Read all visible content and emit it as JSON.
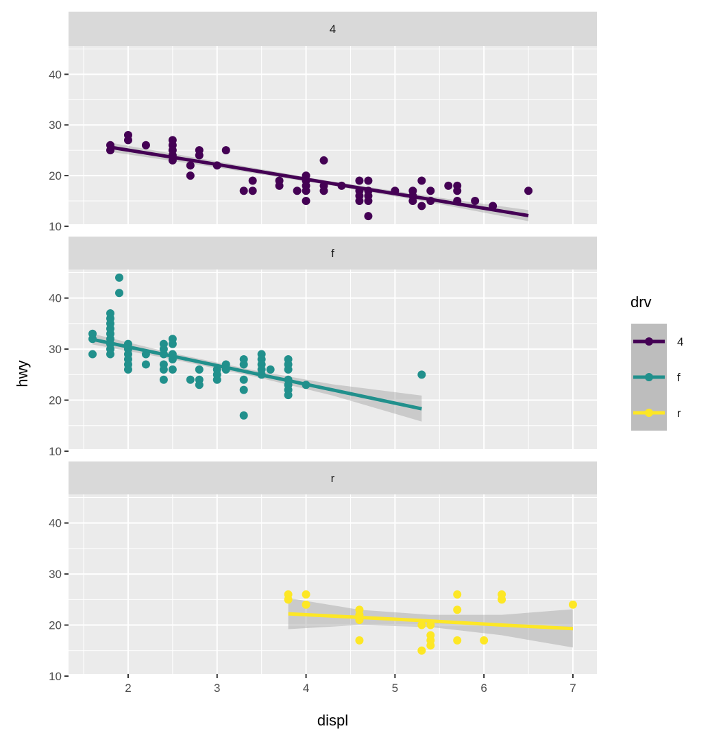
{
  "chart_data": {
    "type": "scatter",
    "xlabel": "displ",
    "ylabel": "hwy",
    "xlim": [
      1.33,
      7.27
    ],
    "ylim": [
      10.4,
      45.6
    ],
    "x_ticks": [
      2,
      3,
      4,
      5,
      6,
      7
    ],
    "y_ticks": [
      10,
      20,
      30,
      40
    ],
    "grid": true,
    "facet_by": "drv",
    "legend": {
      "title": "drv",
      "position": "right",
      "entries": [
        "4",
        "f",
        "r"
      ]
    },
    "facets": [
      {
        "label": "4",
        "color": "#440154",
        "points": [
          [
            1.8,
            26
          ],
          [
            1.8,
            25
          ],
          [
            2,
            28
          ],
          [
            2,
            27
          ],
          [
            2.2,
            26
          ],
          [
            2.5,
            27
          ],
          [
            2.5,
            26
          ],
          [
            2.5,
            25
          ],
          [
            2.5,
            24
          ],
          [
            2.5,
            23
          ],
          [
            2.7,
            22
          ],
          [
            2.7,
            20
          ],
          [
            2.8,
            25
          ],
          [
            2.8,
            24
          ],
          [
            3,
            22
          ],
          [
            3.1,
            25
          ],
          [
            3.3,
            17
          ],
          [
            3.4,
            19
          ],
          [
            3.4,
            17
          ],
          [
            3.7,
            19
          ],
          [
            3.7,
            18
          ],
          [
            3.9,
            17
          ],
          [
            4,
            20
          ],
          [
            4,
            19
          ],
          [
            4,
            18
          ],
          [
            4,
            17
          ],
          [
            4,
            15
          ],
          [
            4.2,
            23
          ],
          [
            4.2,
            18
          ],
          [
            4.2,
            17
          ],
          [
            4.4,
            18
          ],
          [
            4.6,
            19
          ],
          [
            4.6,
            17
          ],
          [
            4.6,
            16
          ],
          [
            4.6,
            15
          ],
          [
            4.7,
            19
          ],
          [
            4.7,
            17
          ],
          [
            4.7,
            16
          ],
          [
            4.7,
            15
          ],
          [
            4.7,
            12
          ],
          [
            5,
            17
          ],
          [
            5.2,
            17
          ],
          [
            5.2,
            16
          ],
          [
            5.2,
            15
          ],
          [
            5.3,
            19
          ],
          [
            5.3,
            14
          ],
          [
            5.4,
            17
          ],
          [
            5.4,
            15
          ],
          [
            5.6,
            18
          ],
          [
            5.7,
            18
          ],
          [
            5.7,
            17
          ],
          [
            5.7,
            15
          ],
          [
            5.9,
            15
          ],
          [
            6.1,
            14
          ],
          [
            6.5,
            17
          ]
        ],
        "fit": [
          [
            1.8,
            25.6,
            24.7,
            26.5
          ],
          [
            3,
            22.2,
            21.6,
            22.8
          ],
          [
            4.2,
            18.7,
            18.3,
            19.1
          ],
          [
            5.4,
            15.3,
            14.7,
            15.9
          ],
          [
            6.5,
            12.1,
            11.0,
            13.2
          ]
        ]
      },
      {
        "label": "f",
        "color": "#21908C",
        "points": [
          [
            1.6,
            33
          ],
          [
            1.6,
            32
          ],
          [
            1.6,
            29
          ],
          [
            1.8,
            29
          ],
          [
            1.8,
            30
          ],
          [
            1.8,
            31
          ],
          [
            1.8,
            32
          ],
          [
            1.8,
            33
          ],
          [
            1.8,
            34
          ],
          [
            1.8,
            35
          ],
          [
            1.8,
            36
          ],
          [
            1.8,
            37
          ],
          [
            1.9,
            44
          ],
          [
            1.9,
            41
          ],
          [
            2,
            31
          ],
          [
            2,
            30
          ],
          [
            2,
            29
          ],
          [
            2,
            28
          ],
          [
            2,
            27
          ],
          [
            2,
            26
          ],
          [
            2.2,
            29
          ],
          [
            2.2,
            27
          ],
          [
            2.4,
            31
          ],
          [
            2.4,
            30
          ],
          [
            2.4,
            29
          ],
          [
            2.4,
            27
          ],
          [
            2.4,
            26
          ],
          [
            2.4,
            24
          ],
          [
            2.5,
            32
          ],
          [
            2.5,
            31
          ],
          [
            2.5,
            29
          ],
          [
            2.5,
            28
          ],
          [
            2.5,
            26
          ],
          [
            2.7,
            24
          ],
          [
            2.8,
            26
          ],
          [
            2.8,
            24
          ],
          [
            2.8,
            23
          ],
          [
            3,
            26
          ],
          [
            3,
            25
          ],
          [
            3,
            24
          ],
          [
            3.1,
            27
          ],
          [
            3.1,
            26
          ],
          [
            3.3,
            28
          ],
          [
            3.3,
            27
          ],
          [
            3.3,
            24
          ],
          [
            3.3,
            22
          ],
          [
            3.3,
            17
          ],
          [
            3.5,
            29
          ],
          [
            3.5,
            28
          ],
          [
            3.5,
            27
          ],
          [
            3.5,
            26
          ],
          [
            3.5,
            25
          ],
          [
            3.6,
            26
          ],
          [
            3.8,
            28
          ],
          [
            3.8,
            27
          ],
          [
            3.8,
            26
          ],
          [
            3.8,
            24
          ],
          [
            3.8,
            23
          ],
          [
            3.8,
            22
          ],
          [
            3.8,
            21
          ],
          [
            4,
            23
          ],
          [
            5.3,
            25
          ]
        ],
        "fit": [
          [
            1.6,
            31.9,
            30.9,
            33.0
          ],
          [
            2.5,
            28.6,
            28.0,
            29.2
          ],
          [
            3.4,
            25.3,
            24.7,
            25.9
          ],
          [
            4.3,
            22.0,
            20.9,
            23.1
          ],
          [
            5.3,
            18.3,
            15.8,
            20.9
          ]
        ]
      },
      {
        "label": "r",
        "color": "#FDE725",
        "points": [
          [
            3.8,
            26
          ],
          [
            3.8,
            25
          ],
          [
            4,
            26
          ],
          [
            4,
            24
          ],
          [
            4.6,
            23
          ],
          [
            4.6,
            22
          ],
          [
            4.6,
            21
          ],
          [
            4.6,
            17
          ],
          [
            5.3,
            20
          ],
          [
            5.3,
            15
          ],
          [
            5.4,
            20
          ],
          [
            5.4,
            18
          ],
          [
            5.4,
            17
          ],
          [
            5.4,
            16
          ],
          [
            5.7,
            26
          ],
          [
            5.7,
            23
          ],
          [
            5.7,
            17
          ],
          [
            6,
            17
          ],
          [
            6.2,
            26
          ],
          [
            6.2,
            25
          ],
          [
            7,
            24
          ]
        ],
        "fit": [
          [
            3.8,
            22.2,
            19.2,
            25.3
          ],
          [
            4.6,
            21.5,
            20.0,
            23.0
          ],
          [
            5.4,
            20.8,
            19.6,
            22.0
          ],
          [
            6.2,
            20.0,
            18.0,
            22.0
          ],
          [
            7,
            19.3,
            15.6,
            23.1
          ]
        ]
      }
    ]
  }
}
